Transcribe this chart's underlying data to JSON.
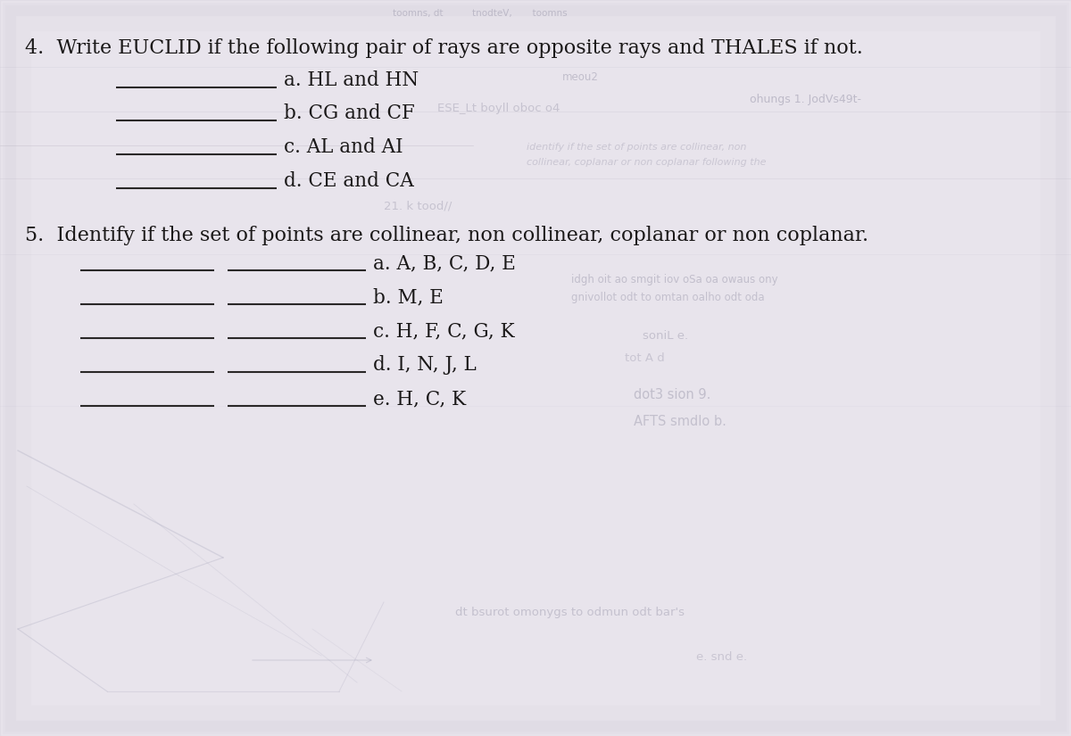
{
  "bg_color": "#c8c4cc",
  "paper_color": "#e8e4ec",
  "paper_color2": "#dedad8",
  "text_color": "#1a1818",
  "line_color": "#2a2828",
  "bleed_color": "#7a7890",
  "title_q4": "4.  Write EUCLID if the following pair of rays are opposite rays and THALES if not.",
  "q4_items": [
    "a. HL and HN",
    "b. CG and CF",
    "c. AL and AI",
    "d. CE and CA"
  ],
  "title_q5": "5.  Identify if the set of points are collinear, non collinear, coplanar or non coplanar.",
  "q5_items": [
    "a. A, B, C, D, E",
    "b. M, E",
    "c. H, F, C, G, K",
    "d. I, N, J, L",
    "e. H, C, K"
  ],
  "font_size_title": 16,
  "font_size_items": 15.5,
  "font_size_bleed": 8.5
}
